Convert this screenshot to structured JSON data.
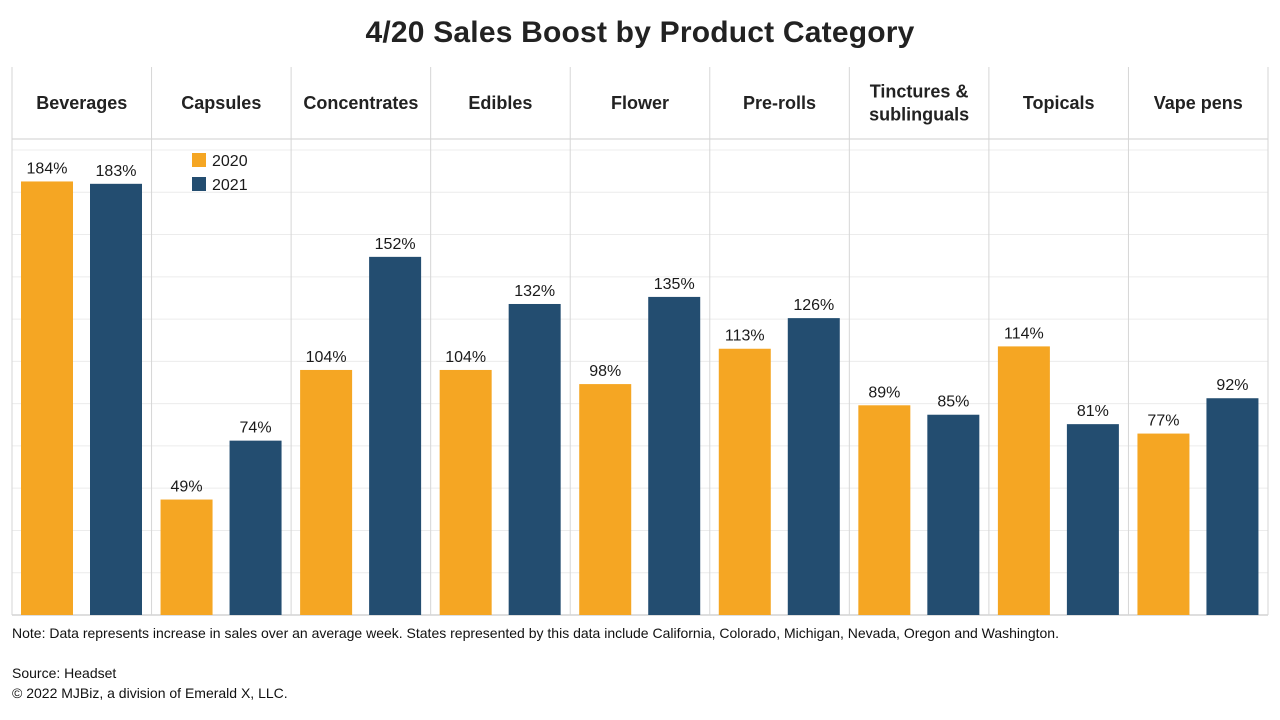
{
  "chart_data": {
    "type": "bar",
    "title": "4/20 Sales Boost by Product Category",
    "categories": [
      "Beverages",
      "Capsules",
      "Concentrates",
      "Edibles",
      "Flower",
      "Pre-rolls",
      "Tinctures & sublinguals",
      "Topicals",
      "Vape pens"
    ],
    "category_lines": [
      [
        "Beverages"
      ],
      [
        "Capsules"
      ],
      [
        "Concentrates"
      ],
      [
        "Edibles"
      ],
      [
        "Flower"
      ],
      [
        "Pre-rolls"
      ],
      [
        "Tinctures &",
        "sublinguals"
      ],
      [
        "Topicals"
      ],
      [
        "Vape pens"
      ]
    ],
    "series": [
      {
        "name": "2020",
        "color": "#f5a623",
        "values": [
          184,
          49,
          104,
          104,
          98,
          113,
          89,
          114,
          77
        ],
        "labels": [
          "184%",
          "49%",
          "104%",
          "104%",
          "98%",
          "113%",
          "89%",
          "114%",
          "77%"
        ]
      },
      {
        "name": "2021",
        "color": "#234d70",
        "values": [
          183,
          74,
          152,
          132,
          135,
          126,
          85,
          81,
          92
        ],
        "labels": [
          "183%",
          "74%",
          "152%",
          "132%",
          "135%",
          "126%",
          "85%",
          "81%",
          "92%"
        ]
      }
    ],
    "unit": "%",
    "ylim": [
      0,
      200
    ],
    "grid": true,
    "legend_position": "top-left"
  },
  "footer": {
    "note": "Note: Data represents increase in sales over an average week. States represented by this data include California, Colorado, Michigan, Nevada, Oregon and Washington.",
    "source": "Source: Headset",
    "copyright": "© 2022 MJBiz, a division of Emerald X, LLC."
  }
}
